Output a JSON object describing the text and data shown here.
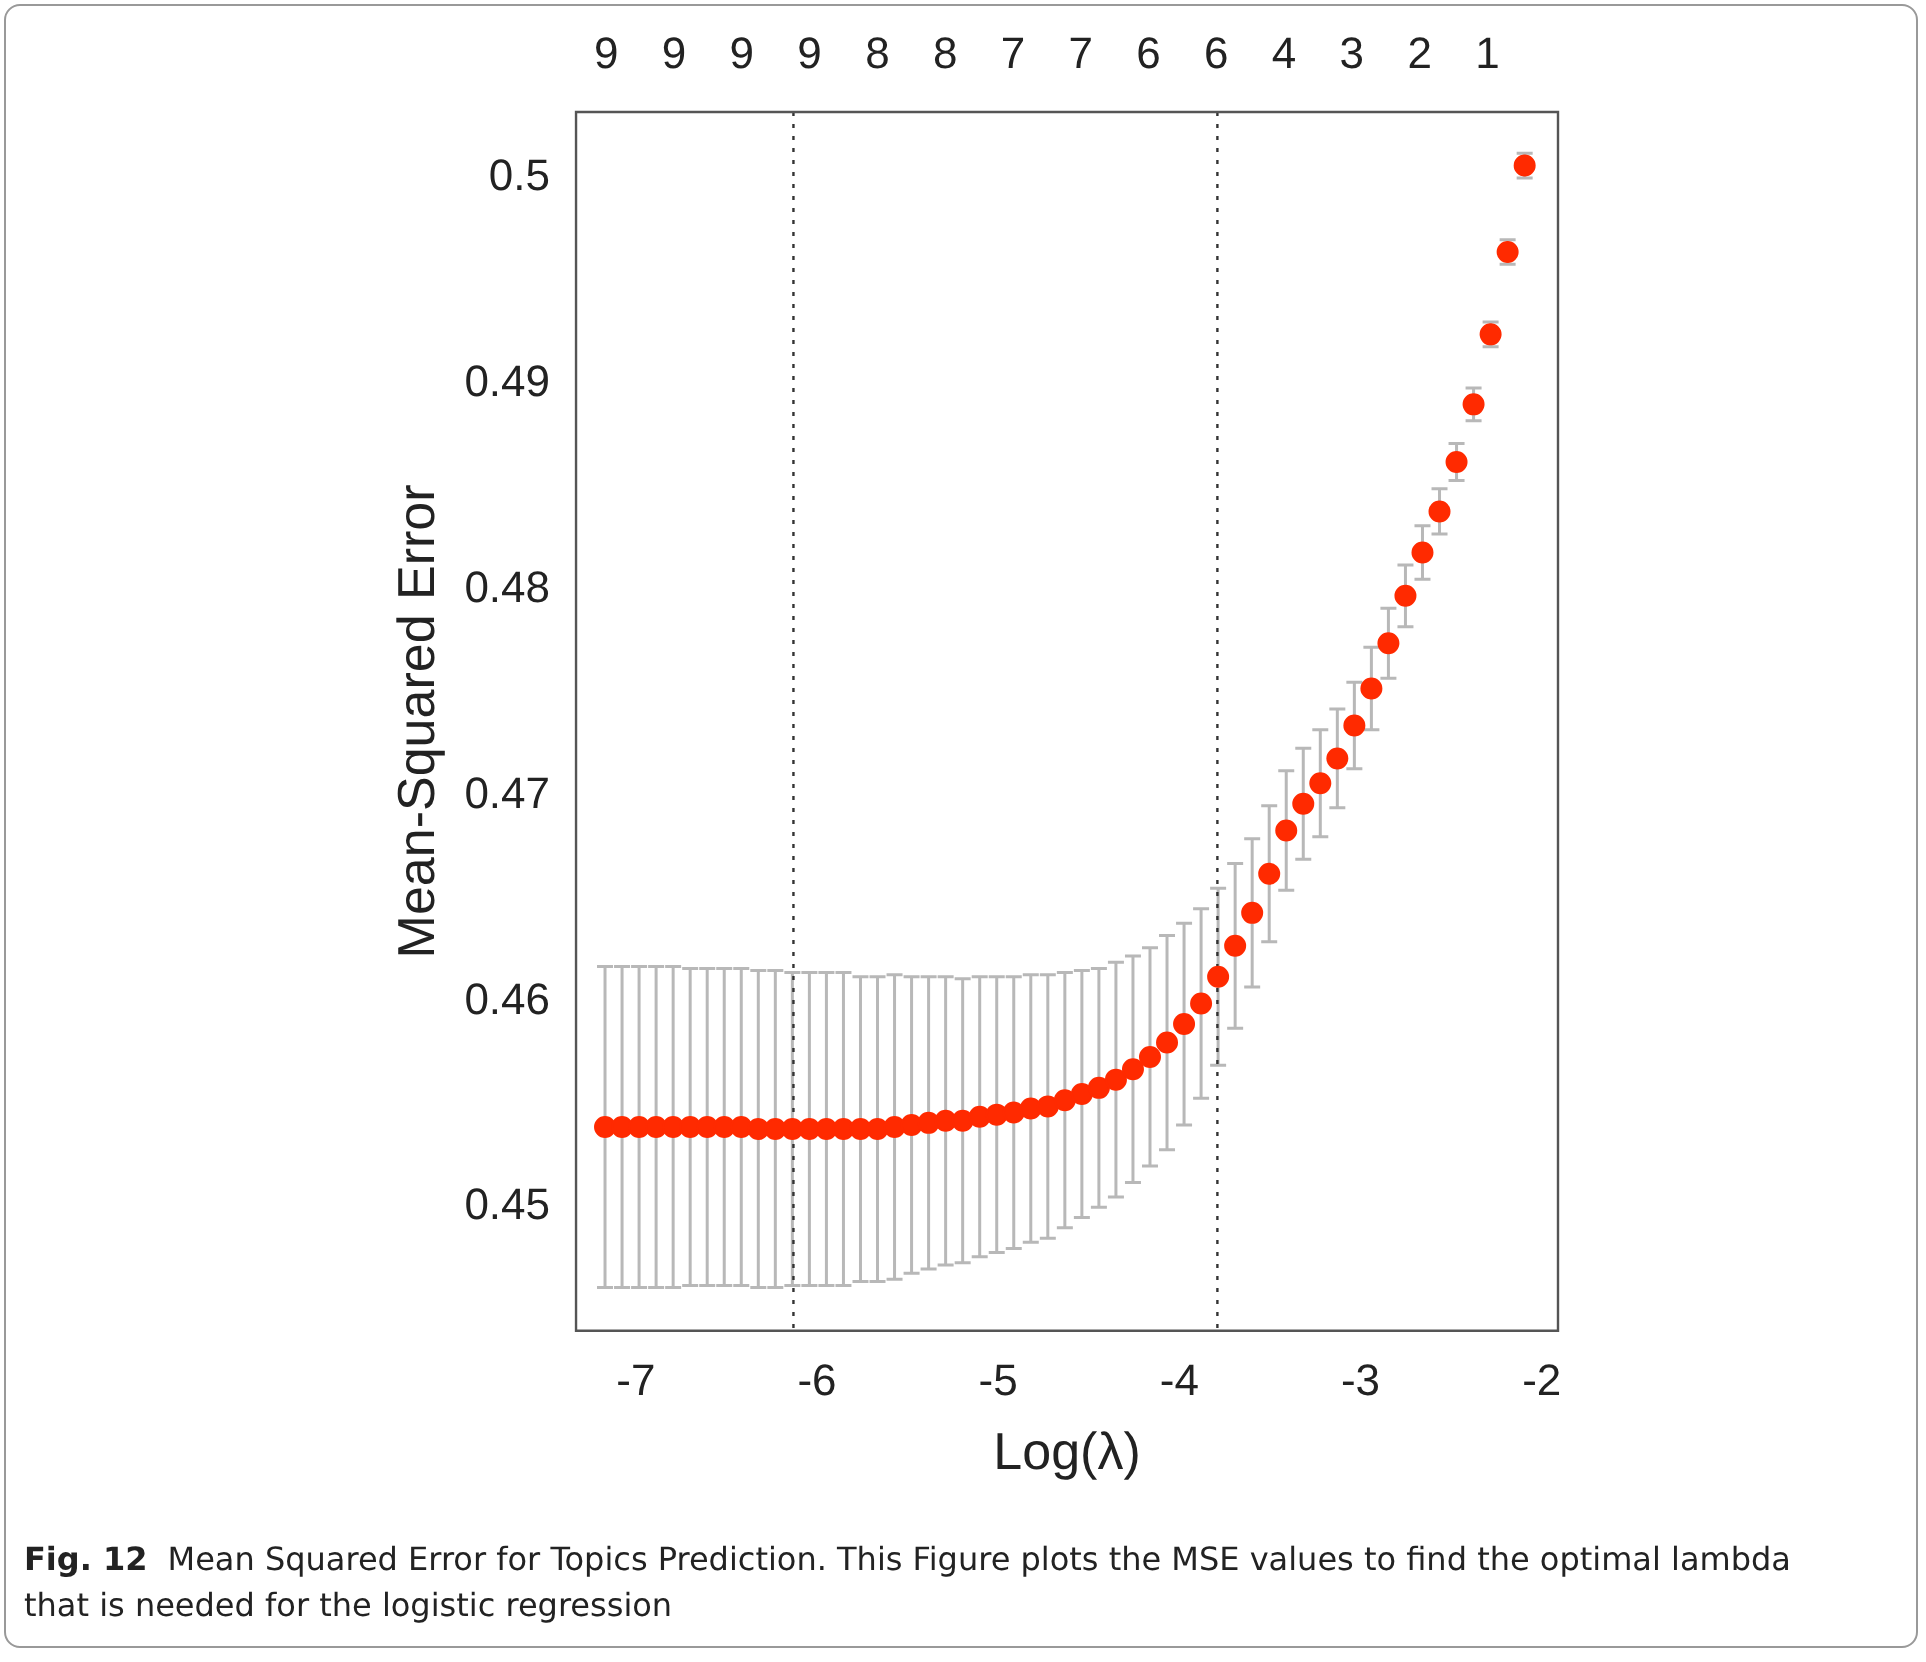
{
  "chart_data": {
    "type": "scatter",
    "xlabel": "Log(λ)",
    "ylabel": "Mean-Squared Error",
    "annotations": [
      "Fig. 12",
      "Mean Squared Error for Topics Prediction. This Figure plots the MSE values to find the optimal lambda that is needed for the logistic regression",
      "9",
      "9",
      "9",
      "9",
      "8",
      "8",
      "7",
      "7",
      "6",
      "6",
      "4",
      "3",
      "2",
      "1"
    ],
    "x": [
      -7.17,
      -7.076,
      -6.982,
      -6.888,
      -6.794,
      -6.7,
      -6.606,
      -6.512,
      -6.418,
      -6.324,
      -6.23,
      -6.136,
      -6.042,
      -5.948,
      -5.854,
      -5.76,
      -5.666,
      -5.572,
      -5.478,
      -5.384,
      -5.29,
      -5.196,
      -5.102,
      -5.008,
      -4.914,
      -4.82,
      -4.726,
      -4.632,
      -4.538,
      -4.444,
      -4.35,
      -4.256,
      -4.162,
      -4.068,
      -3.974,
      -3.88,
      -3.786,
      -3.692,
      -3.598,
      -3.504,
      -3.41,
      -3.316,
      -3.222,
      -3.128,
      -3.034,
      -2.94,
      -2.846,
      -2.752,
      -2.658,
      -2.564,
      -2.47,
      -2.376,
      -2.282,
      -2.188,
      -2.094
    ],
    "series": [
      {
        "color": "#ff2a00",
        "values": [
          0.4539,
          0.4539,
          0.4539,
          0.4539,
          0.4539,
          0.4539,
          0.4539,
          0.4539,
          0.4539,
          0.4538,
          0.4538,
          0.4538,
          0.4538,
          0.4538,
          0.4538,
          0.4538,
          0.4538,
          0.4539,
          0.454,
          0.4541,
          0.4542,
          0.4542,
          0.4544,
          0.4545,
          0.4546,
          0.4548,
          0.4549,
          0.4552,
          0.4555,
          0.4558,
          0.4562,
          0.4567,
          0.4573,
          0.458,
          0.4589,
          0.4599,
          0.4612,
          0.4627,
          0.4643,
          0.4662,
          0.4683,
          0.4696,
          0.4706,
          0.4718,
          0.4734,
          0.4752,
          0.4774,
          0.4797,
          0.4818,
          0.4838,
          0.4862,
          0.489,
          0.4924,
          0.4964,
          0.5006
        ],
        "errors": [
          0.0078,
          0.0078,
          0.0078,
          0.0078,
          0.0078,
          0.0077,
          0.0077,
          0.0077,
          0.0077,
          0.0077,
          0.0077,
          0.0076,
          0.0076,
          0.0076,
          0.0076,
          0.0074,
          0.0074,
          0.0074,
          0.0072,
          0.0071,
          0.007,
          0.0069,
          0.0068,
          0.0067,
          0.0066,
          0.0065,
          0.0064,
          0.0062,
          0.006,
          0.0058,
          0.0057,
          0.0055,
          0.0053,
          0.0052,
          0.0049,
          0.0046,
          0.0043,
          0.004,
          0.0036,
          0.0033,
          0.0029,
          0.0027,
          0.0026,
          0.0024,
          0.0021,
          0.002,
          0.0017,
          0.0015,
          0.0013,
          0.0011,
          0.0009,
          0.0008,
          0.0006,
          0.0006,
          0.0006
        ]
      }
    ],
    "xlim": [
      -7.33,
      -1.91
    ],
    "ylim": [
      0.444,
      0.5032
    ],
    "xticks": [
      -7,
      -6,
      -5,
      -4,
      -3,
      -2
    ],
    "yticks": [
      0.45,
      0.46,
      0.47,
      0.48,
      0.49,
      0.5
    ],
    "ref_lines": [
      {
        "axis": "x",
        "value": -6.13
      },
      {
        "axis": "x",
        "value": -3.79
      }
    ],
    "grid": false,
    "legend": false,
    "marker": "circle"
  }
}
